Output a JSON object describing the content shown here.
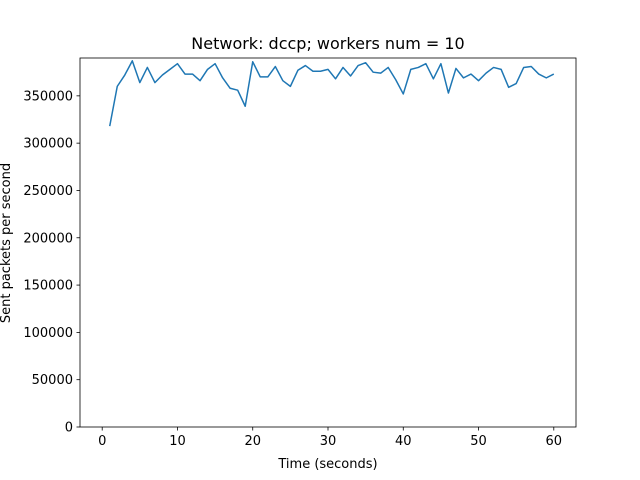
{
  "chart_data": {
    "type": "line",
    "title": "Network: dccp; workers num = 10",
    "xlabel": "Time (seconds)",
    "ylabel": "Sent packets per second",
    "xlim": [
      -2.95,
      62.95
    ],
    "ylim": [
      0,
      390000
    ],
    "xticks": [
      0,
      10,
      20,
      30,
      40,
      50,
      60
    ],
    "yticks": [
      0,
      50000,
      100000,
      150000,
      200000,
      250000,
      300000,
      350000
    ],
    "grid": false,
    "series": [
      {
        "color": "#1f77b4",
        "x": [
          1,
          2,
          3,
          4,
          5,
          6,
          7,
          8,
          9,
          10,
          11,
          12,
          13,
          14,
          15,
          16,
          17,
          18,
          19,
          20,
          21,
          22,
          23,
          24,
          25,
          26,
          27,
          28,
          29,
          30,
          31,
          32,
          33,
          34,
          35,
          36,
          37,
          38,
          39,
          40,
          41,
          42,
          43,
          44,
          45,
          46,
          47,
          48,
          49,
          50,
          51,
          52,
          53,
          54,
          55,
          56,
          57,
          58,
          59,
          60
        ],
        "values": [
          318000,
          360000,
          372000,
          387000,
          364000,
          380000,
          364000,
          372000,
          378000,
          384000,
          373000,
          373000,
          366000,
          378000,
          384000,
          369000,
          358000,
          356000,
          339000,
          386000,
          370000,
          370000,
          381000,
          366000,
          360000,
          377000,
          382000,
          376000,
          376000,
          378000,
          368000,
          380000,
          371000,
          382000,
          385000,
          375000,
          374000,
          380000,
          367000,
          352000,
          378000,
          380000,
          384000,
          368000,
          384000,
          353000,
          379000,
          369000,
          373000,
          366000,
          374000,
          380000,
          378000,
          359000,
          363000,
          380000,
          381000,
          373000,
          369000,
          373000
        ]
      }
    ]
  }
}
